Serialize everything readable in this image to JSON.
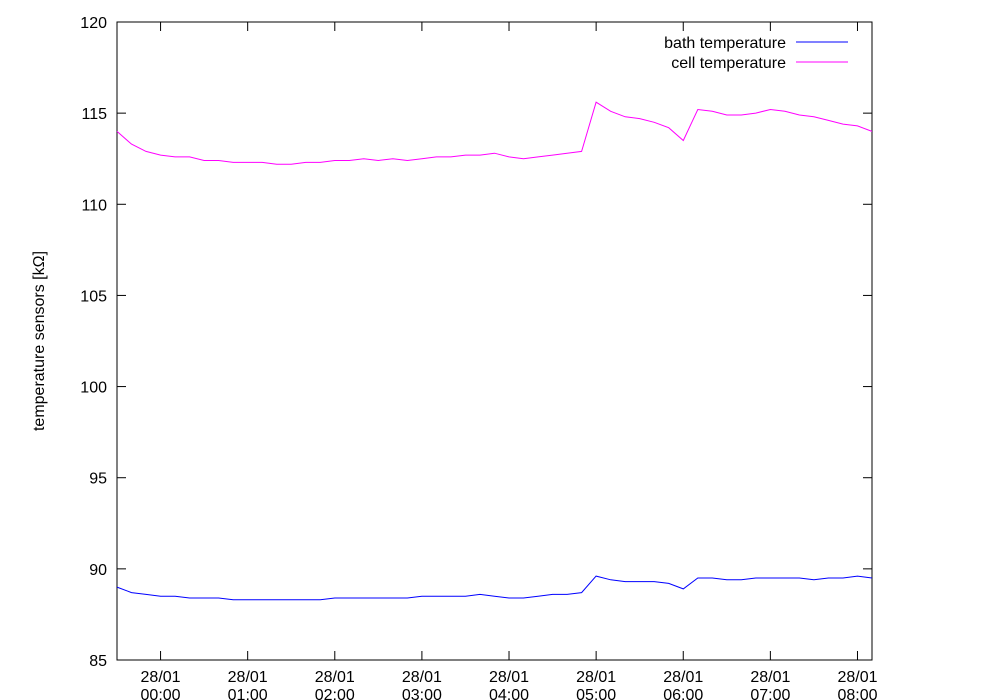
{
  "chart_data": {
    "type": "line",
    "y_label": "temperature sensors [kΩ]",
    "x": [
      "27/01 23:30",
      "27/01 23:40",
      "27/01 23:50",
      "28/01 00:00",
      "28/01 00:10",
      "28/01 00:20",
      "28/01 00:30",
      "28/01 00:40",
      "28/01 00:50",
      "28/01 01:00",
      "28/01 01:10",
      "28/01 01:20",
      "28/01 01:30",
      "28/01 01:40",
      "28/01 01:50",
      "28/01 02:00",
      "28/01 02:10",
      "28/01 02:20",
      "28/01 02:30",
      "28/01 02:40",
      "28/01 02:50",
      "28/01 03:00",
      "28/01 03:10",
      "28/01 03:20",
      "28/01 03:30",
      "28/01 03:40",
      "28/01 03:50",
      "28/01 04:00",
      "28/01 04:10",
      "28/01 04:20",
      "28/01 04:30",
      "28/01 04:40",
      "28/01 04:50",
      "28/01 05:00",
      "28/01 05:10",
      "28/01 05:20",
      "28/01 05:30",
      "28/01 05:40",
      "28/01 05:50",
      "28/01 06:00",
      "28/01 06:10",
      "28/01 06:20",
      "28/01 06:30",
      "28/01 06:40",
      "28/01 06:50",
      "28/01 07:00",
      "28/01 07:10",
      "28/01 07:20",
      "28/01 07:30",
      "28/01 07:40",
      "28/01 07:50",
      "28/01 08:00",
      "28/01 08:10"
    ],
    "series": [
      {
        "name": "bath temperature",
        "color": "#0000ff",
        "values": [
          89.0,
          88.7,
          88.6,
          88.5,
          88.5,
          88.4,
          88.4,
          88.4,
          88.3,
          88.3,
          88.3,
          88.3,
          88.3,
          88.3,
          88.3,
          88.4,
          88.4,
          88.4,
          88.4,
          88.4,
          88.4,
          88.5,
          88.5,
          88.5,
          88.5,
          88.6,
          88.5,
          88.4,
          88.4,
          88.5,
          88.6,
          88.6,
          88.7,
          89.6,
          89.4,
          89.3,
          89.3,
          89.3,
          89.2,
          88.9,
          89.5,
          89.5,
          89.4,
          89.4,
          89.5,
          89.5,
          89.5,
          89.5,
          89.4,
          89.5,
          89.5,
          89.6,
          89.5
        ]
      },
      {
        "name": "cell temperature",
        "color": "#ff00ff",
        "values": [
          114.0,
          113.3,
          112.9,
          112.7,
          112.6,
          112.6,
          112.4,
          112.4,
          112.3,
          112.3,
          112.3,
          112.2,
          112.2,
          112.3,
          112.3,
          112.4,
          112.4,
          112.5,
          112.4,
          112.5,
          112.4,
          112.5,
          112.6,
          112.6,
          112.7,
          112.7,
          112.8,
          112.6,
          112.5,
          112.6,
          112.7,
          112.8,
          112.9,
          115.6,
          115.1,
          114.8,
          114.7,
          114.5,
          114.2,
          113.5,
          115.2,
          115.1,
          114.9,
          114.9,
          115.0,
          115.2,
          115.1,
          114.9,
          114.8,
          114.6,
          114.4,
          114.3,
          114.0
        ]
      }
    ],
    "xlim": [
      "27/01 23:30",
      "28/01 08:10"
    ],
    "xticks": [
      "28/01 00:00",
      "28/01 01:00",
      "28/01 02:00",
      "28/01 03:00",
      "28/01 04:00",
      "28/01 05:00",
      "28/01 06:00",
      "28/01 07:00",
      "28/01 08:00"
    ],
    "ylim": [
      85,
      120
    ],
    "yticks": [
      85,
      90,
      95,
      100,
      105,
      110,
      115,
      120
    ],
    "legend": "top-right"
  }
}
